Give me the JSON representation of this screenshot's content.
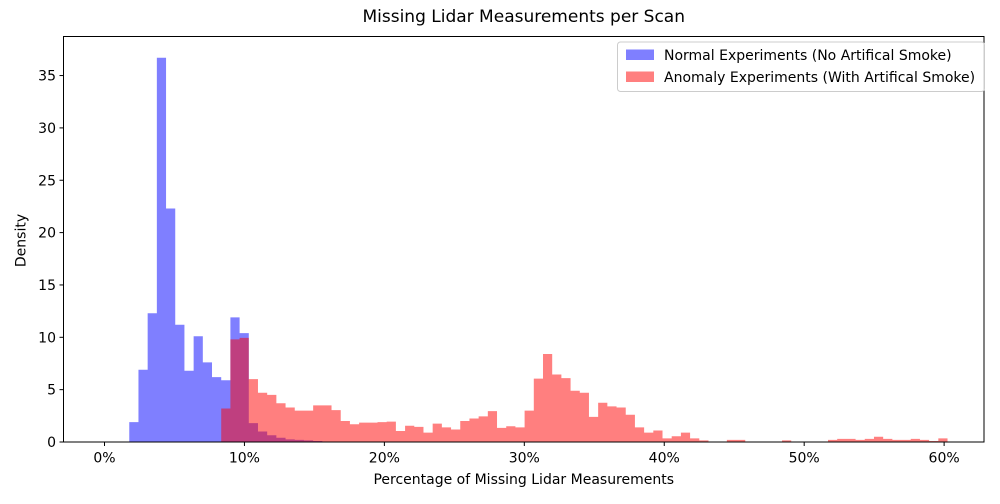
{
  "figure": {
    "title": "Missing Lidar Measurements per Scan"
  },
  "chart_data": {
    "type": "bar",
    "subtype": "overlaid-histogram",
    "title": "Missing Lidar Measurements per Scan",
    "xlabel": "Percentage of Missing Lidar Measurements",
    "ylabel": "Density",
    "xlim": [
      -2.93,
      62.85
    ],
    "ylim": [
      0,
      38.73
    ],
    "xticks": {
      "values": [
        0,
        10,
        20,
        30,
        40,
        50,
        60
      ],
      "labels": [
        "0%",
        "10%",
        "20%",
        "30%",
        "40%",
        "50%",
        "60%"
      ]
    },
    "yticks": {
      "values": [
        0,
        5,
        10,
        15,
        20,
        25,
        30,
        35
      ],
      "labels": [
        "0",
        "5",
        "10",
        "15",
        "20",
        "25",
        "30",
        "35"
      ]
    },
    "grid": false,
    "bin_width_pct": 0.657,
    "legend": {
      "position": "upper right"
    },
    "series": [
      {
        "name": "Normal Experiments (No Artifical Smoke)",
        "color": "#0000ff",
        "opacity": 0.5,
        "start_pct": 1.77,
        "heights": [
          1.9,
          6.9,
          12.3,
          36.7,
          22.3,
          11.2,
          6.8,
          10.1,
          7.6,
          6.2,
          5.9,
          11.9,
          10.4,
          1.8,
          1.0,
          0.65,
          0.4,
          0.25,
          0.2,
          0.15,
          0.1
        ]
      },
      {
        "name": "Anomaly Experiments (With Artifical Smoke)",
        "color": "#ff0000",
        "opacity": 0.5,
        "start_pct": 8.34,
        "heights": [
          3.2,
          9.8,
          9.95,
          6.0,
          4.7,
          4.5,
          3.7,
          3.3,
          3.0,
          3.0,
          3.5,
          3.5,
          3.05,
          2.0,
          1.7,
          1.85,
          1.85,
          1.9,
          1.95,
          1.05,
          1.55,
          1.45,
          0.9,
          1.75,
          1.4,
          1.2,
          2.0,
          2.25,
          2.45,
          2.95,
          1.35,
          1.5,
          1.4,
          3.0,
          6.05,
          8.4,
          6.45,
          6.1,
          4.9,
          4.7,
          2.4,
          3.75,
          3.4,
          3.3,
          2.6,
          1.4,
          0.9,
          1.1,
          0.35,
          0.55,
          0.9,
          0.35,
          0.15,
          0,
          0,
          0.2,
          0.2,
          0,
          0,
          0,
          0,
          0.15,
          0,
          0,
          0,
          0,
          0.2,
          0.3,
          0.3,
          0.2,
          0.3,
          0.5,
          0.3,
          0.2,
          0.2,
          0.3,
          0.2,
          0.1,
          0.35
        ]
      }
    ]
  }
}
